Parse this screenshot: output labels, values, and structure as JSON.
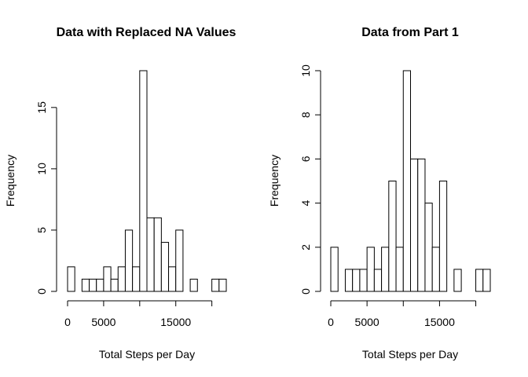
{
  "chart_data": [
    {
      "type": "bar",
      "subtype": "histogram",
      "title": "Data with Replaced NA Values",
      "xlabel": "Total Steps per Day",
      "ylabel": "Frequency",
      "bin_width": 1000,
      "bin_start": 0,
      "values": [
        2,
        0,
        1,
        1,
        1,
        2,
        1,
        2,
        5,
        2,
        18,
        6,
        6,
        4,
        2,
        5,
        0,
        1,
        0,
        0,
        1,
        1
      ],
      "xlim": [
        0,
        22000
      ],
      "ylim": [
        0,
        18
      ],
      "x_ticks": [
        0,
        5000,
        10000,
        15000,
        20000
      ],
      "x_tick_labels": [
        "0",
        "5000",
        "",
        "15000",
        ""
      ],
      "y_ticks": [
        0,
        5,
        10,
        15
      ],
      "y_tick_labels": [
        "0",
        "5",
        "10",
        "15"
      ],
      "grid": false,
      "bar_color": "#ffffff",
      "edge_color": "#000000"
    },
    {
      "type": "bar",
      "subtype": "histogram",
      "title": "Data from Part 1",
      "xlabel": "Total Steps per Day",
      "ylabel": "Frequency",
      "bin_width": 1000,
      "bin_start": 0,
      "values": [
        2,
        0,
        1,
        1,
        1,
        2,
        1,
        2,
        5,
        2,
        10,
        6,
        6,
        4,
        2,
        5,
        0,
        1,
        0,
        0,
        1,
        1
      ],
      "xlim": [
        0,
        22000
      ],
      "ylim": [
        0,
        10
      ],
      "x_ticks": [
        0,
        5000,
        10000,
        15000,
        20000
      ],
      "x_tick_labels": [
        "0",
        "5000",
        "",
        "15000",
        ""
      ],
      "y_ticks": [
        0,
        2,
        4,
        6,
        8,
        10
      ],
      "y_tick_labels": [
        "0",
        "2",
        "4",
        "6",
        "8",
        "10"
      ],
      "grid": false,
      "bar_color": "#ffffff",
      "edge_color": "#000000"
    }
  ]
}
